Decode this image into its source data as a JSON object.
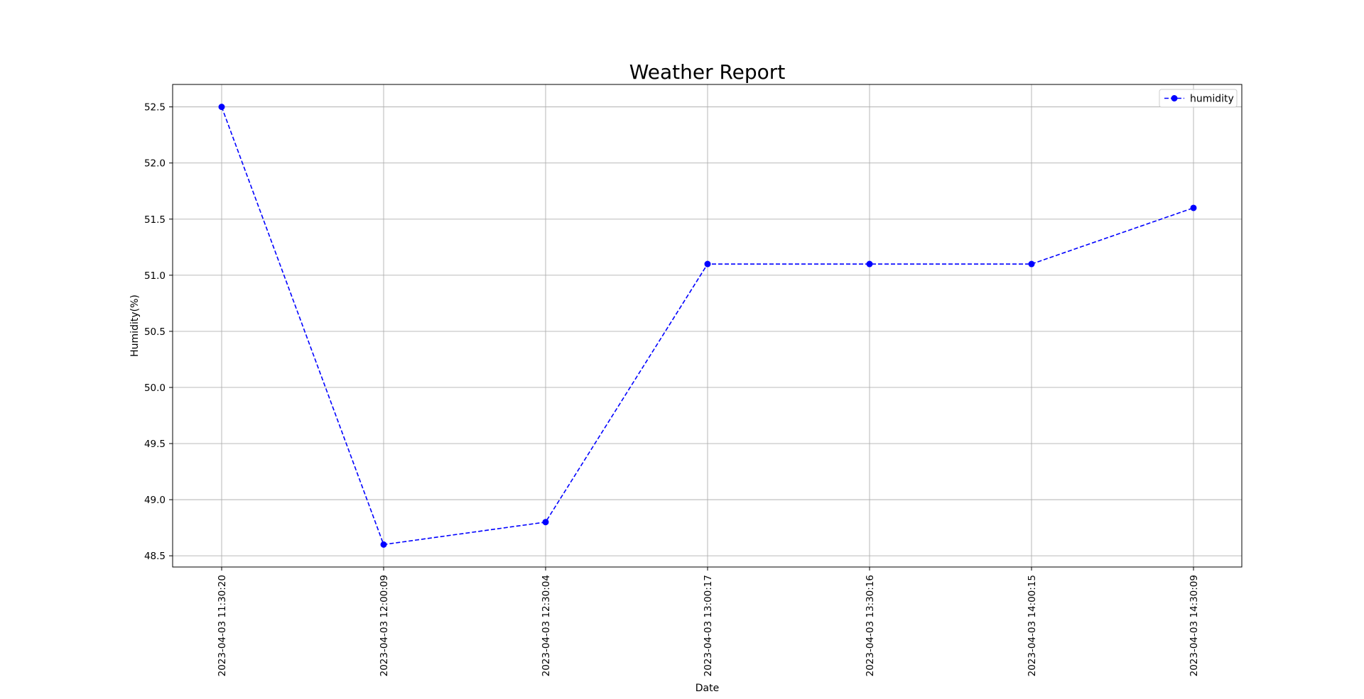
{
  "chart_data": {
    "type": "line",
    "title": "Weather Report",
    "xlabel": "Date",
    "ylabel": "Humidity(%)",
    "categories": [
      "2023-04-03 11:30:20",
      "2023-04-03 12:00:09",
      "2023-04-03 12:30:04",
      "2023-04-03 13:00:17",
      "2023-04-03 13:30:16",
      "2023-04-03 14:00:15",
      "2023-04-03 14:30:09"
    ],
    "series": [
      {
        "name": "humidity",
        "values": [
          52.5,
          48.6,
          48.8,
          51.1,
          51.1,
          51.1,
          51.6
        ],
        "color": "#0000ff",
        "line_style": "dashed",
        "marker": "circle"
      }
    ],
    "yticks": [
      "48.5",
      "49.0",
      "49.5",
      "50.0",
      "50.5",
      "51.0",
      "51.5",
      "52.0",
      "52.5"
    ],
    "ylim": [
      48.4,
      52.7
    ],
    "grid": true,
    "legend": "top-right"
  }
}
